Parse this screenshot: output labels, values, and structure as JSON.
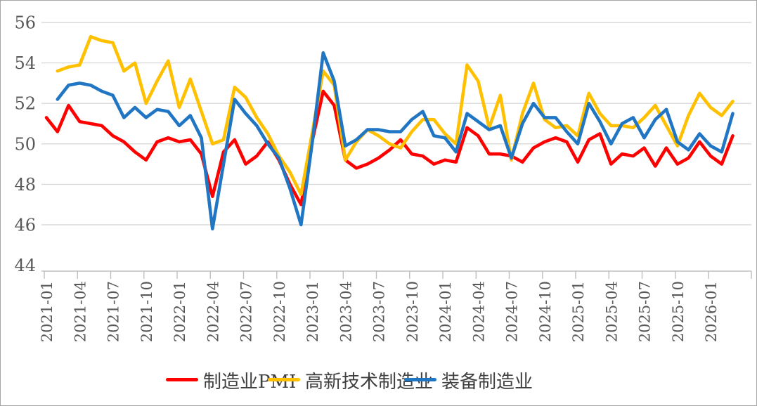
{
  "chart_data": {
    "type": "line",
    "title": "",
    "xlabel": "",
    "ylabel": "",
    "ylim": [
      44,
      56
    ],
    "y_ticks": [
      44,
      46,
      48,
      50,
      52,
      54,
      56
    ],
    "grid": "horizontal",
    "legend_position": "bottom",
    "x_tick_labels": [
      "2021-01",
      "2021-04",
      "2021-07",
      "2021-10",
      "2022-01",
      "2022-04",
      "2022-07",
      "2022-10",
      "2023-01",
      "2023-04",
      "2023-07",
      "2023-10",
      "2024-01",
      "2024-04",
      "2024-07",
      "2024-10",
      "2025-01",
      "2025-04",
      "2025-07",
      "2025-10",
      "2026-01"
    ],
    "months": [
      "2021-01",
      "2021-02",
      "2021-03",
      "2021-04",
      "2021-05",
      "2021-06",
      "2021-07",
      "2021-08",
      "2021-09",
      "2021-10",
      "2021-11",
      "2021-12",
      "2022-01",
      "2022-02",
      "2022-03",
      "2022-04",
      "2022-05",
      "2022-06",
      "2022-07",
      "2022-08",
      "2022-09",
      "2022-10",
      "2022-11",
      "2022-12",
      "2023-01",
      "2023-02",
      "2023-03",
      "2023-04",
      "2023-05",
      "2023-06",
      "2023-07",
      "2023-08",
      "2023-09",
      "2023-10",
      "2023-11",
      "2023-12",
      "2024-01",
      "2024-02",
      "2024-03",
      "2024-04",
      "2024-05",
      "2024-06",
      "2024-07",
      "2024-08",
      "2024-09",
      "2024-10",
      "2024-11",
      "2024-12",
      "2025-01",
      "2025-02",
      "2025-03",
      "2025-04",
      "2025-05",
      "2025-06",
      "2025-07",
      "2025-08",
      "2025-09",
      "2025-10",
      "2025-11",
      "2025-12",
      "2026-01",
      "2026-02",
      "2026-03"
    ],
    "series": [
      {
        "name": "制造业PMI",
        "color": "#FE0000",
        "values": [
          51.3,
          50.6,
          51.9,
          51.1,
          51.0,
          50.9,
          50.4,
          50.1,
          49.6,
          49.2,
          50.1,
          50.3,
          50.1,
          50.2,
          49.5,
          47.4,
          49.6,
          50.2,
          49.0,
          49.4,
          50.1,
          49.2,
          48.0,
          47.0,
          50.1,
          52.6,
          51.9,
          49.2,
          48.8,
          49.0,
          49.3,
          49.7,
          50.2,
          49.5,
          49.4,
          49.0,
          49.2,
          49.1,
          50.8,
          50.4,
          49.5,
          49.5,
          49.4,
          49.1,
          49.8,
          50.1,
          50.3,
          50.1,
          49.1,
          50.2,
          50.5,
          49.0,
          49.5,
          49.4,
          49.8,
          48.9,
          49.8,
          49.0,
          49.3,
          50.1,
          49.4,
          49.0,
          50.4
        ]
      },
      {
        "name": "高新技术制造业",
        "color": "#FFC000",
        "values": [
          null,
          53.6,
          53.8,
          53.9,
          55.3,
          55.1,
          55.0,
          53.6,
          54.0,
          52.0,
          53.1,
          54.1,
          51.8,
          53.2,
          51.6,
          50.0,
          50.2,
          52.8,
          52.3,
          51.3,
          50.5,
          49.4,
          48.6,
          47.5,
          50.5,
          53.6,
          52.9,
          49.2,
          50.1,
          50.7,
          50.4,
          50.0,
          49.8,
          50.6,
          51.2,
          51.2,
          50.5,
          50.0,
          53.9,
          53.1,
          50.8,
          52.4,
          49.2,
          51.5,
          53.0,
          51.2,
          50.8,
          50.9,
          50.4,
          52.5,
          51.5,
          50.9,
          50.9,
          50.8,
          51.3,
          51.9,
          50.9,
          49.9,
          51.4,
          52.5,
          51.8,
          51.4,
          52.1
        ]
      },
      {
        "name": "装备制造业",
        "color": "#2176C4",
        "values": [
          null,
          52.2,
          52.9,
          53.0,
          52.9,
          52.6,
          52.4,
          51.3,
          51.8,
          51.3,
          51.7,
          51.6,
          50.9,
          51.4,
          50.3,
          45.8,
          49.0,
          52.2,
          51.5,
          50.9,
          50.0,
          49.3,
          47.8,
          46.0,
          50.0,
          54.5,
          53.1,
          49.9,
          50.2,
          50.7,
          50.7,
          50.6,
          50.6,
          51.2,
          51.6,
          50.4,
          50.3,
          49.6,
          51.5,
          51.1,
          50.7,
          50.9,
          49.3,
          51.0,
          52.0,
          51.3,
          51.3,
          50.6,
          50.0,
          52.0,
          51.1,
          50.0,
          51.0,
          51.3,
          50.3,
          51.2,
          51.7,
          50.1,
          49.7,
          50.5,
          49.9,
          49.6,
          51.5
        ]
      }
    ],
    "colors": {
      "gridline": "#D9D9D9",
      "axis_line": "#BFBFBF",
      "axis_label": "#595959",
      "legend_text": "#3F3F3F",
      "background": "#FFFFFF",
      "border": "#A6A6A6"
    }
  }
}
